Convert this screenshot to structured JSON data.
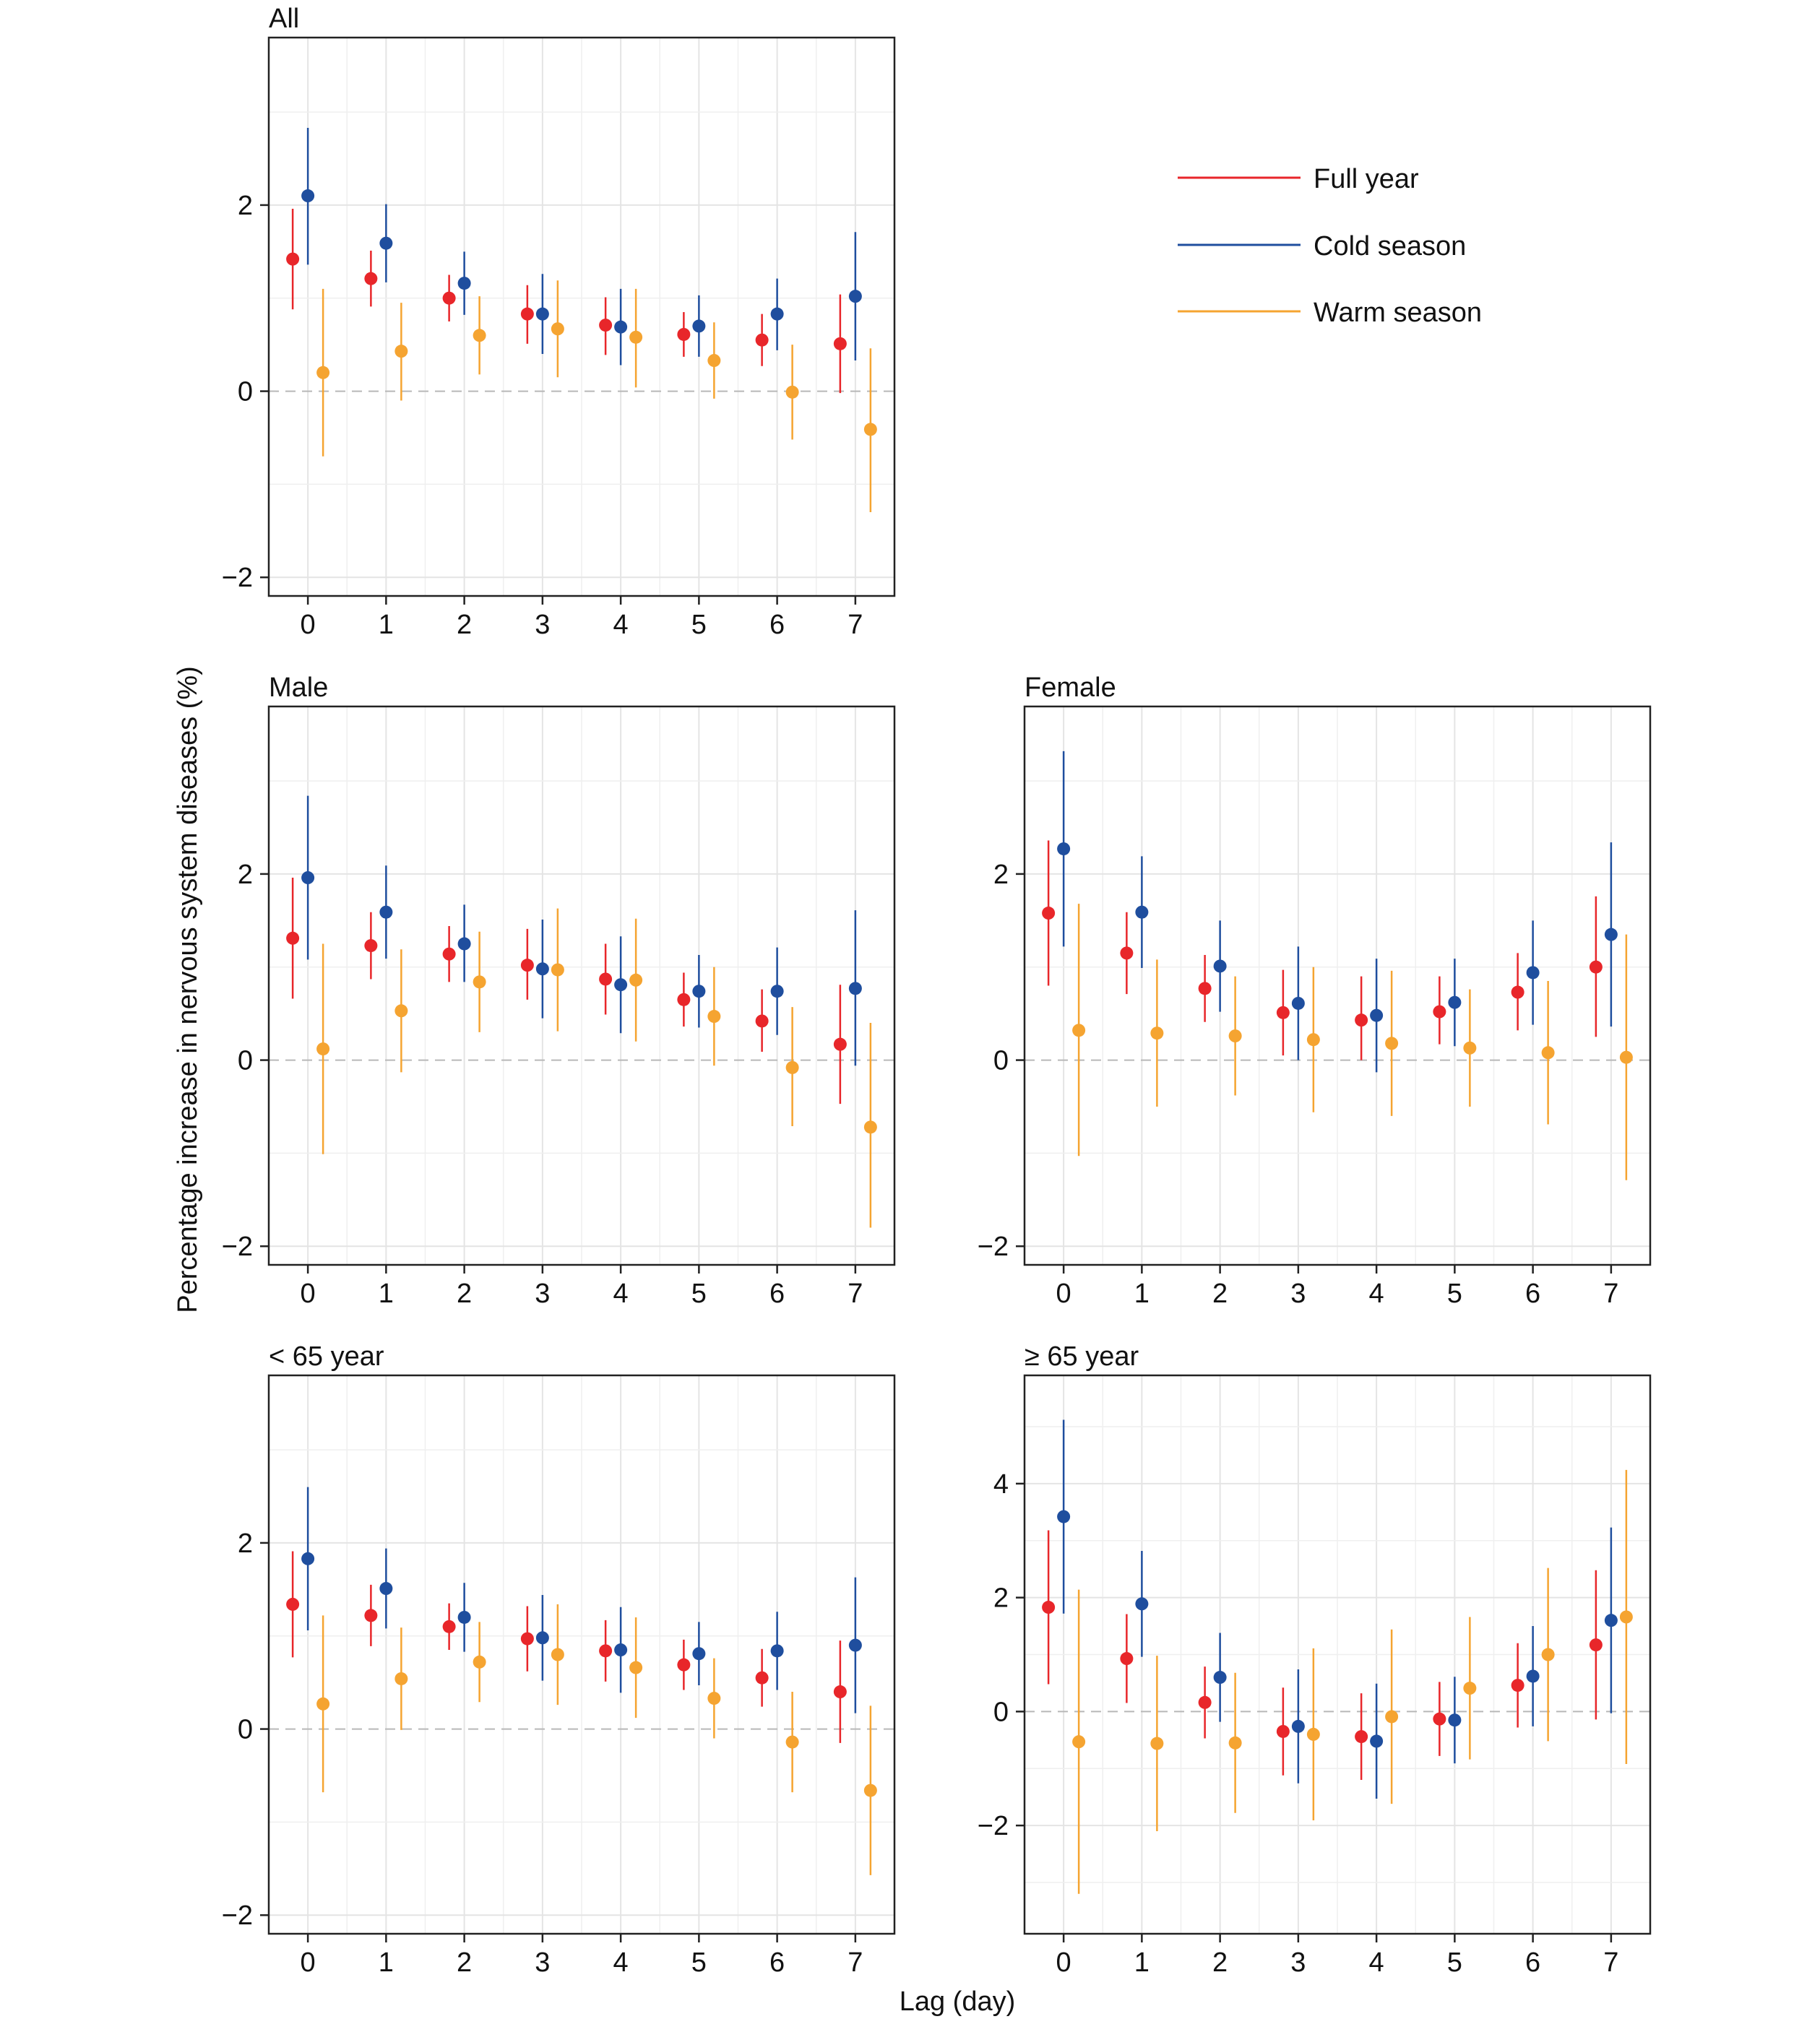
{
  "figure": {
    "ylabel": "Percentage increase in nervous system diseases (%)",
    "xlabel": "Lag (day)"
  },
  "legend": {
    "placement": "top-right",
    "items": [
      {
        "label": "Full year",
        "color": "#e8262a"
      },
      {
        "label": "Cold season",
        "color": "#1f4e9e"
      },
      {
        "label": "Warm season",
        "color": "#f5a431"
      }
    ]
  },
  "chart_data": [
    {
      "type": "scatter",
      "title": "All",
      "x": [
        0,
        1,
        2,
        3,
        4,
        5,
        6,
        7
      ],
      "ylim": [
        -2.2,
        3.8
      ],
      "yticks": [
        -2,
        0,
        2
      ],
      "series": [
        {
          "name": "Full year",
          "color": "#e8262a",
          "values": [
            1.42,
            1.21,
            1.0,
            0.83,
            0.71,
            0.61,
            0.55,
            0.51
          ],
          "lower": [
            0.88,
            0.91,
            0.75,
            0.51,
            0.39,
            0.37,
            0.27,
            -0.02
          ],
          "upper": [
            1.96,
            1.51,
            1.25,
            1.14,
            1.01,
            0.85,
            0.83,
            1.04
          ]
        },
        {
          "name": "Cold season",
          "color": "#1f4e9e",
          "values": [
            2.1,
            1.59,
            1.16,
            0.83,
            0.69,
            0.7,
            0.83,
            1.02
          ],
          "lower": [
            1.36,
            1.17,
            0.82,
            0.4,
            0.28,
            0.37,
            0.44,
            0.33
          ],
          "upper": [
            2.83,
            2.01,
            1.5,
            1.26,
            1.1,
            1.03,
            1.21,
            1.71
          ]
        },
        {
          "name": "Warm season",
          "color": "#f5a431",
          "values": [
            0.2,
            0.43,
            0.6,
            0.67,
            0.58,
            0.33,
            -0.01,
            -0.41
          ],
          "lower": [
            -0.7,
            -0.1,
            0.18,
            0.15,
            0.04,
            -0.08,
            -0.52,
            -1.3
          ],
          "upper": [
            1.1,
            0.95,
            1.02,
            1.19,
            1.1,
            0.74,
            0.5,
            0.46
          ]
        }
      ]
    },
    {
      "type": "scatter",
      "title": "Male",
      "x": [
        0,
        1,
        2,
        3,
        4,
        5,
        6,
        7
      ],
      "ylim": [
        -2.2,
        3.8
      ],
      "yticks": [
        -2,
        0,
        2
      ],
      "series": [
        {
          "name": "Full year",
          "color": "#e8262a",
          "values": [
            1.31,
            1.23,
            1.14,
            1.02,
            0.87,
            0.65,
            0.42,
            0.17
          ],
          "lower": [
            0.66,
            0.87,
            0.84,
            0.65,
            0.49,
            0.36,
            0.09,
            -0.47
          ],
          "upper": [
            1.96,
            1.59,
            1.44,
            1.41,
            1.25,
            0.94,
            0.76,
            0.81
          ]
        },
        {
          "name": "Cold season",
          "color": "#1f4e9e",
          "values": [
            1.96,
            1.59,
            1.25,
            0.98,
            0.81,
            0.74,
            0.74,
            0.77
          ],
          "lower": [
            1.08,
            1.09,
            0.84,
            0.45,
            0.29,
            0.35,
            0.27,
            -0.06
          ],
          "upper": [
            2.84,
            2.09,
            1.67,
            1.51,
            1.33,
            1.13,
            1.21,
            1.61
          ]
        },
        {
          "name": "Warm season",
          "color": "#f5a431",
          "values": [
            0.12,
            0.53,
            0.84,
            0.97,
            0.86,
            0.47,
            -0.08,
            -0.72
          ],
          "lower": [
            -1.01,
            -0.13,
            0.3,
            0.31,
            0.2,
            -0.06,
            -0.71,
            -1.8
          ],
          "upper": [
            1.25,
            1.19,
            1.38,
            1.63,
            1.52,
            1.0,
            0.57,
            0.4
          ]
        }
      ]
    },
    {
      "type": "scatter",
      "title": "Female",
      "x": [
        0,
        1,
        2,
        3,
        4,
        5,
        6,
        7
      ],
      "ylim": [
        -2.2,
        3.8
      ],
      "yticks": [
        -2,
        0,
        2
      ],
      "series": [
        {
          "name": "Full year",
          "color": "#e8262a",
          "values": [
            1.58,
            1.15,
            0.77,
            0.51,
            0.43,
            0.52,
            0.73,
            1.0
          ],
          "lower": [
            0.8,
            0.71,
            0.41,
            0.05,
            0.0,
            0.17,
            0.32,
            0.25
          ],
          "upper": [
            2.36,
            1.59,
            1.13,
            0.97,
            0.9,
            0.9,
            1.15,
            1.76
          ]
        },
        {
          "name": "Cold season",
          "color": "#1f4e9e",
          "values": [
            2.27,
            1.59,
            1.01,
            0.61,
            0.48,
            0.62,
            0.94,
            1.35
          ],
          "lower": [
            1.22,
            0.99,
            0.52,
            0.0,
            -0.13,
            0.15,
            0.38,
            0.36
          ],
          "upper": [
            3.32,
            2.19,
            1.5,
            1.22,
            1.09,
            1.09,
            1.5,
            2.34
          ]
        },
        {
          "name": "Warm season",
          "color": "#f5a431",
          "values": [
            0.32,
            0.29,
            0.26,
            0.22,
            0.18,
            0.13,
            0.08,
            0.03
          ],
          "lower": [
            -1.03,
            -0.5,
            -0.38,
            -0.56,
            -0.6,
            -0.5,
            -0.69,
            -1.29
          ],
          "upper": [
            1.68,
            1.08,
            0.9,
            1.0,
            0.96,
            0.76,
            0.85,
            1.35
          ]
        }
      ]
    },
    {
      "type": "scatter",
      "title": "< 65 year",
      "x": [
        0,
        1,
        2,
        3,
        4,
        5,
        6,
        7
      ],
      "ylim": [
        -2.2,
        3.8
      ],
      "yticks": [
        -2,
        0,
        2
      ],
      "series": [
        {
          "name": "Full year",
          "color": "#e8262a",
          "values": [
            1.34,
            1.22,
            1.1,
            0.97,
            0.84,
            0.69,
            0.55,
            0.4
          ],
          "lower": [
            0.77,
            0.89,
            0.85,
            0.62,
            0.51,
            0.42,
            0.24,
            -0.15
          ],
          "upper": [
            1.91,
            1.55,
            1.35,
            1.32,
            1.17,
            0.96,
            0.86,
            0.95
          ]
        },
        {
          "name": "Cold season",
          "color": "#1f4e9e",
          "values": [
            1.83,
            1.51,
            1.2,
            0.98,
            0.85,
            0.81,
            0.84,
            0.9
          ],
          "lower": [
            1.06,
            1.08,
            0.83,
            0.52,
            0.39,
            0.47,
            0.42,
            0.17
          ],
          "upper": [
            2.6,
            1.94,
            1.57,
            1.44,
            1.31,
            1.15,
            1.26,
            1.63
          ]
        },
        {
          "name": "Warm season",
          "color": "#f5a431",
          "values": [
            0.27,
            0.54,
            0.72,
            0.8,
            0.66,
            0.33,
            -0.14,
            -0.66
          ],
          "lower": [
            -0.68,
            -0.01,
            0.29,
            0.26,
            0.12,
            -0.1,
            -0.68,
            -1.57
          ],
          "upper": [
            1.22,
            1.09,
            1.15,
            1.34,
            1.2,
            0.76,
            0.4,
            0.25
          ]
        }
      ]
    },
    {
      "type": "scatter",
      "title": "≥ 65 year",
      "x": [
        0,
        1,
        2,
        3,
        4,
        5,
        6,
        7
      ],
      "ylim": [
        -3.9,
        5.9
      ],
      "yticks": [
        -2,
        0,
        2,
        4
      ],
      "series": [
        {
          "name": "Full year",
          "color": "#e8262a",
          "values": [
            1.83,
            0.93,
            0.16,
            -0.35,
            -0.44,
            -0.13,
            0.46,
            1.17
          ],
          "lower": [
            0.48,
            0.15,
            -0.47,
            -1.12,
            -1.2,
            -0.78,
            -0.28,
            -0.14
          ],
          "upper": [
            3.18,
            1.71,
            0.79,
            0.42,
            0.32,
            0.52,
            1.2,
            2.48
          ]
        },
        {
          "name": "Cold season",
          "color": "#1f4e9e",
          "values": [
            3.42,
            1.89,
            0.6,
            -0.26,
            -0.52,
            -0.15,
            0.62,
            1.6
          ],
          "lower": [
            1.72,
            0.96,
            -0.18,
            -1.26,
            -1.53,
            -0.91,
            -0.26,
            -0.03
          ],
          "upper": [
            5.12,
            2.82,
            1.38,
            0.74,
            0.49,
            0.61,
            1.5,
            3.23
          ]
        },
        {
          "name": "Warm season",
          "color": "#f5a431",
          "values": [
            -0.53,
            -0.56,
            -0.55,
            -0.4,
            -0.09,
            0.41,
            1.0,
            1.66
          ],
          "lower": [
            -3.2,
            -2.1,
            -1.78,
            -1.91,
            -1.62,
            -0.84,
            -0.52,
            -0.92
          ],
          "upper": [
            2.14,
            0.98,
            0.68,
            1.11,
            1.44,
            1.66,
            2.52,
            4.24
          ]
        }
      ]
    }
  ]
}
